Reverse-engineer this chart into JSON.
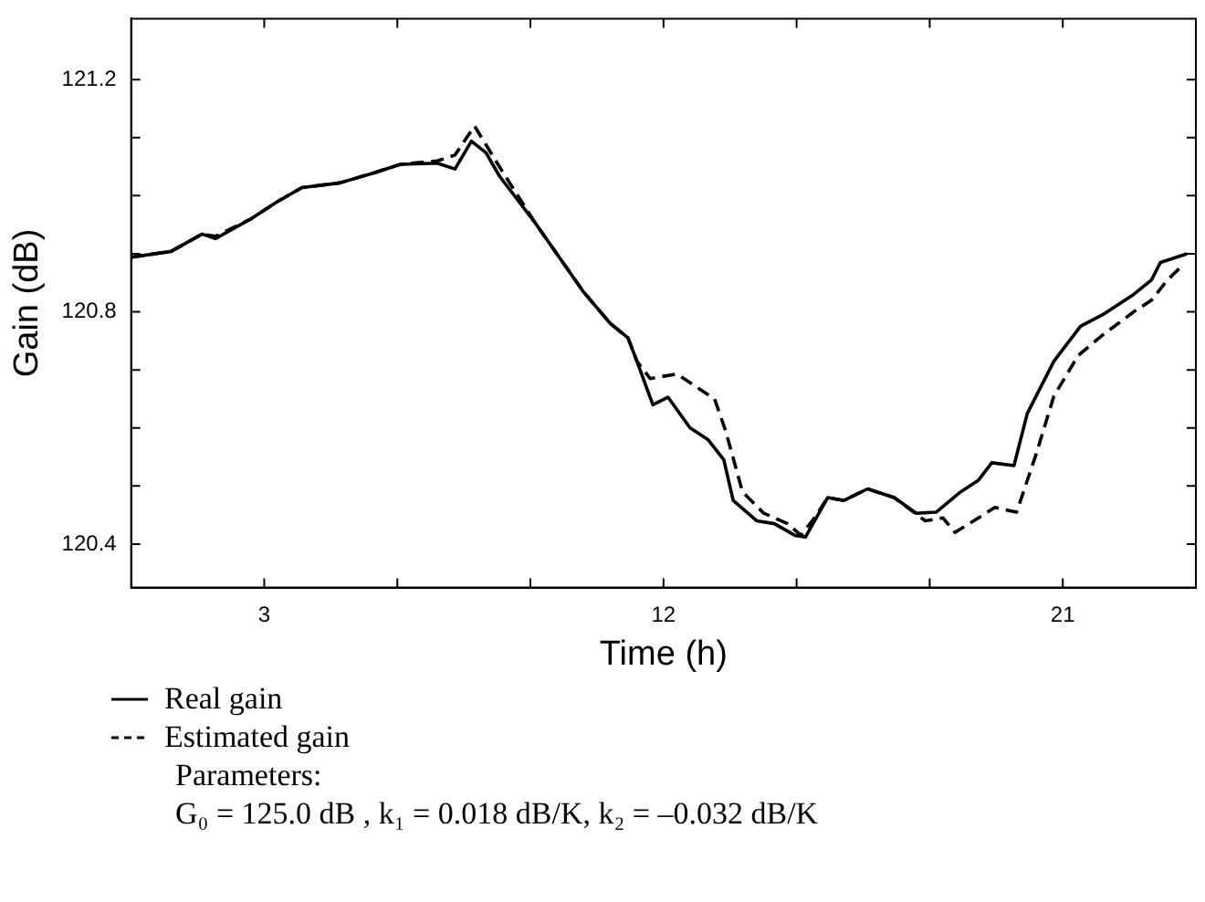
{
  "chart_data": {
    "type": "line",
    "xlabel": "Time (h)",
    "ylabel": "Gain (dB)",
    "xlim": [
      0,
      24
    ],
    "ylim": [
      120.325,
      121.305
    ],
    "xticks": [
      3,
      {
        "value": 6,
        "label": null
      },
      {
        "value": 9,
        "label": null
      },
      12,
      {
        "value": 15,
        "label": null
      },
      {
        "value": 18,
        "label": null
      },
      21
    ],
    "yticks": [
      120.4,
      {
        "value": 120.5,
        "label": null
      },
      {
        "value": 120.6,
        "label": null
      },
      {
        "value": 120.7,
        "label": null
      },
      120.8,
      {
        "value": 120.9,
        "label": null
      },
      {
        "value": 121.0,
        "label": null
      },
      {
        "value": 121.1,
        "label": null
      },
      121.2
    ],
    "grid": false,
    "legend": "bottom",
    "marker": "none",
    "series": [
      {
        "name": "Real gain",
        "color": "#000000",
        "line_style": "solid",
        "x": [
          0,
          0.9,
          1.6,
          1.9,
          2.7,
          3.3,
          3.85,
          4.7,
          5.5,
          6.07,
          6.9,
          7.3,
          7.67,
          8.0,
          8.3,
          9.1,
          10.2,
          10.8,
          11.2,
          11.4,
          11.76,
          12.1,
          12.6,
          13.0,
          13.36,
          13.57,
          14.1,
          14.5,
          14.96,
          15.2,
          15.7,
          16.07,
          16.6,
          17.2,
          17.7,
          18.15,
          18.7,
          19.1,
          19.4,
          19.9,
          20.2,
          20.8,
          21.4,
          21.9,
          22.6,
          23.0,
          23.2,
          23.8
        ],
        "values": [
          120.894,
          120.904,
          120.934,
          120.926,
          120.96,
          120.99,
          121.014,
          121.022,
          121.04,
          121.054,
          121.056,
          121.046,
          121.094,
          121.074,
          121.034,
          120.954,
          120.834,
          120.78,
          120.755,
          120.715,
          120.64,
          120.653,
          120.6,
          120.58,
          120.545,
          120.475,
          120.44,
          120.435,
          120.415,
          120.412,
          120.48,
          120.475,
          120.495,
          120.48,
          120.453,
          120.455,
          120.49,
          120.51,
          120.54,
          120.535,
          120.625,
          120.715,
          120.775,
          120.795,
          120.83,
          120.855,
          120.885,
          120.9
        ]
      },
      {
        "name": "Estimated gain",
        "color": "#000000",
        "line_style": "dashed",
        "x": [
          0,
          0.9,
          1.6,
          1.9,
          2.7,
          3.3,
          3.85,
          4.7,
          5.5,
          6.07,
          6.9,
          7.3,
          7.74,
          8.3,
          9.1,
          10.2,
          10.8,
          11.2,
          11.4,
          11.7,
          12.3,
          13.15,
          13.4,
          13.78,
          14.26,
          14.8,
          15.1,
          15.4,
          15.7,
          16.07,
          16.6,
          17.2,
          17.9,
          18.3,
          18.57,
          19.1,
          19.47,
          19.96,
          20.4,
          20.8,
          21.35,
          21.9,
          22.6,
          23.0,
          23.36,
          23.7
        ],
        "values": [
          120.894,
          120.904,
          120.934,
          120.93,
          120.96,
          120.99,
          121.014,
          121.022,
          121.04,
          121.054,
          121.06,
          121.07,
          121.12,
          121.05,
          120.954,
          120.834,
          120.78,
          120.755,
          120.715,
          120.685,
          120.693,
          120.65,
          120.595,
          120.49,
          120.453,
          120.435,
          120.415,
          120.445,
          120.48,
          120.475,
          120.495,
          120.48,
          120.44,
          120.445,
          120.42,
          120.445,
          120.463,
          120.455,
          120.555,
          120.655,
          120.725,
          120.76,
          120.8,
          120.82,
          120.855,
          120.88
        ]
      }
    ],
    "annotations": [
      "Parameters:",
      "G₀ = 125.0 dB , k₁ = 0.018 dB/K, k₂ = –0.032 dB/K"
    ]
  }
}
